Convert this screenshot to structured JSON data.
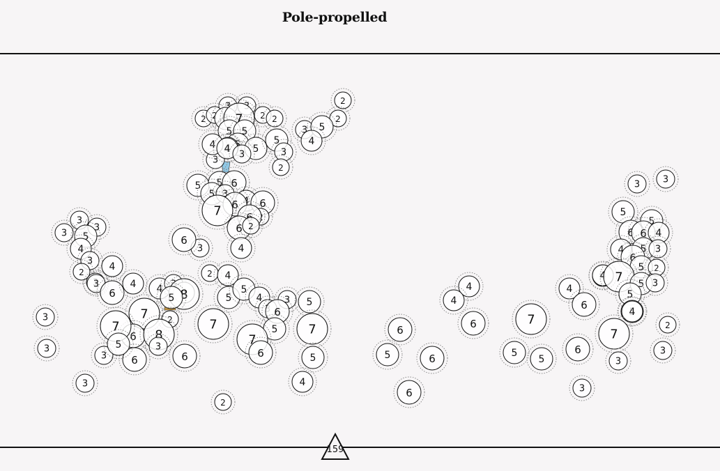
{
  "title": "Pole-propelled",
  "page_number": "159",
  "colors": {
    "background": "#f7f5f6",
    "ink": "#111111",
    "halo": "#8a8a8a",
    "connector_blue": "#8fc8e6",
    "connector_orange": "#c8963c",
    "connector_purple": "#7a4fa0"
  },
  "nodes": [
    {
      "label": "2"
    },
    {
      "label": "2"
    },
    {
      "label": "3"
    },
    {
      "label": "3"
    },
    {
      "label": "2"
    },
    {
      "label": "2"
    },
    {
      "label": "5"
    },
    {
      "label": "7"
    },
    {
      "label": "2"
    },
    {
      "label": "2"
    },
    {
      "label": "5"
    },
    {
      "label": "5"
    },
    {
      "label": "5"
    },
    {
      "label": "4"
    },
    {
      "label": "5"
    },
    {
      "label": "5"
    },
    {
      "label": "3"
    },
    {
      "label": "5"
    },
    {
      "label": "4"
    },
    {
      "label": "3"
    },
    {
      "label": "3"
    },
    {
      "label": "2"
    },
    {
      "label": "4"
    },
    {
      "label": "4"
    },
    {
      "label": "3"
    },
    {
      "label": "5"
    },
    {
      "label": "5"
    },
    {
      "label": "5"
    },
    {
      "label": "6"
    },
    {
      "label": "3"
    },
    {
      "label": "4"
    },
    {
      "label": "6"
    },
    {
      "label": "6"
    },
    {
      "label": "7"
    },
    {
      "label": "2"
    },
    {
      "label": "6"
    },
    {
      "label": "6"
    },
    {
      "label": "2"
    },
    {
      "label": "3"
    },
    {
      "label": "6"
    },
    {
      "label": "4"
    },
    {
      "label": "3"
    },
    {
      "label": "3"
    },
    {
      "label": "3"
    },
    {
      "label": "5"
    },
    {
      "label": "4"
    },
    {
      "label": "3"
    },
    {
      "label": "3"
    },
    {
      "label": "2"
    },
    {
      "label": "4"
    },
    {
      "label": "3"
    },
    {
      "label": "6"
    },
    {
      "label": "4"
    },
    {
      "label": "4"
    },
    {
      "label": "3"
    },
    {
      "label": "4"
    },
    {
      "label": "8"
    },
    {
      "label": "5"
    },
    {
      "label": "2"
    },
    {
      "label": "4"
    },
    {
      "label": "2"
    },
    {
      "label": "5"
    },
    {
      "label": "5"
    },
    {
      "label": "4"
    },
    {
      "label": "3"
    },
    {
      "label": "3"
    },
    {
      "label": "6"
    },
    {
      "label": "5"
    },
    {
      "label": "7"
    },
    {
      "label": "7"
    },
    {
      "label": "7"
    },
    {
      "label": "6"
    },
    {
      "label": "8"
    },
    {
      "label": "5"
    },
    {
      "label": "3"
    },
    {
      "label": "3"
    },
    {
      "label": "6"
    },
    {
      "label": "6"
    },
    {
      "label": "7"
    },
    {
      "label": "5"
    },
    {
      "label": "7"
    },
    {
      "label": "6"
    },
    {
      "label": "5"
    },
    {
      "label": "4"
    },
    {
      "label": "3"
    },
    {
      "label": "3"
    },
    {
      "label": "3"
    },
    {
      "label": "2"
    },
    {
      "label": "6"
    },
    {
      "label": "5"
    },
    {
      "label": "6"
    },
    {
      "label": "6"
    },
    {
      "label": "4"
    },
    {
      "label": "4"
    },
    {
      "label": "6"
    },
    {
      "label": "7"
    },
    {
      "label": "5"
    },
    {
      "label": "5"
    },
    {
      "label": "6"
    },
    {
      "label": "4"
    },
    {
      "label": "6"
    },
    {
      "label": "3"
    },
    {
      "label": "3"
    },
    {
      "label": "3"
    },
    {
      "label": "5"
    },
    {
      "label": "5"
    },
    {
      "label": "6"
    },
    {
      "label": "6"
    },
    {
      "label": "4"
    },
    {
      "label": "4"
    },
    {
      "label": "5"
    },
    {
      "label": "3"
    },
    {
      "label": "4"
    },
    {
      "label": "6"
    },
    {
      "label": "5"
    },
    {
      "label": "2"
    },
    {
      "label": "4"
    },
    {
      "label": "7"
    },
    {
      "label": "5"
    },
    {
      "label": "5"
    },
    {
      "label": "3"
    },
    {
      "label": "5"
    },
    {
      "label": "4"
    },
    {
      "label": "7"
    },
    {
      "label": "2"
    },
    {
      "label": "3"
    },
    {
      "label": "3"
    }
  ]
}
